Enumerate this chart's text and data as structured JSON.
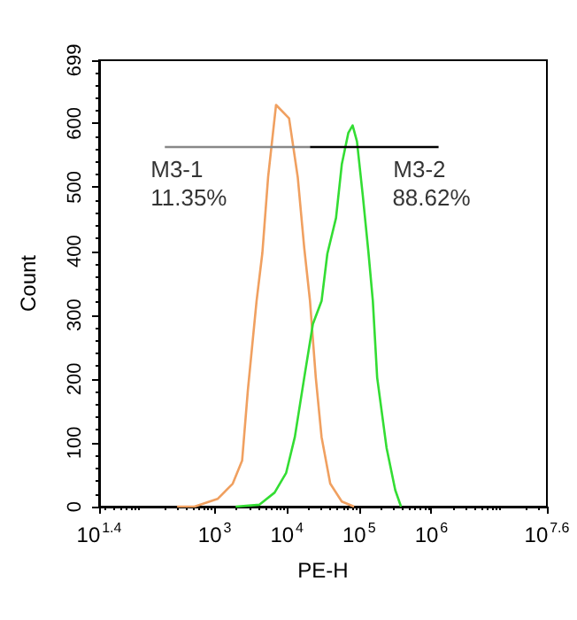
{
  "chart_data": {
    "type": "line",
    "xlabel": "PE-H",
    "ylabel": "Count",
    "log": "x",
    "grid": false,
    "marker": "none",
    "xlim": [
      25.12,
      39810717
    ],
    "xticks": [
      {
        "value": 25.12,
        "label": "10$^{1.4}$"
      },
      {
        "value": 1000,
        "label": "10$^{3}$"
      },
      {
        "value": 10000,
        "label": "10$^{4}$"
      },
      {
        "value": 100000,
        "label": "10$^{5}$"
      },
      {
        "value": 1000000,
        "label": "10$^{6}$"
      },
      {
        "value": 39810717,
        "label": "10$^{7.6}$"
      }
    ],
    "ylim": [
      0,
      699
    ],
    "yticks": [
      0,
      100,
      200,
      300,
      400,
      500,
      600,
      699
    ],
    "series": [
      {
        "color": "#f0a060",
        "x": [
          302,
          525,
          1096,
          1778,
          2399,
          2884,
          3802,
          4571,
          5495,
          7079,
          10720,
          14130,
          17380,
          20890,
          25120,
          30200,
          39810,
          57540,
          85110
        ],
        "values": [
          0,
          0,
          12,
          36,
          72,
          183,
          322,
          397,
          516,
          629,
          608,
          516,
          405,
          322,
          202,
          109,
          36,
          8,
          0
        ]
      },
      {
        "color": "#33dd33",
        "x": [
          1950,
          4169,
          6761,
          9772,
          12880,
          17380,
          22910,
          30200,
          36310,
          47860,
          57540,
          70790,
          81280,
          93330,
          112200,
          134900,
          154900,
          177800,
          239900,
          316200,
          380200
        ],
        "values": [
          0,
          3,
          22,
          53,
          109,
          202,
          286,
          322,
          396,
          452,
          536,
          585,
          597,
          572,
          488,
          397,
          322,
          202,
          92,
          26,
          0
        ]
      },
      {
        "color": "#888888",
        "x": [
          204,
          20890
        ],
        "values": [
          563,
          563
        ]
      },
      {
        "color": "#000000",
        "x": [
          20890,
          1259000
        ],
        "values": [
          563,
          563
        ]
      }
    ],
    "annotations": [
      {
        "text": "M3-1",
        "x": 204,
        "y": 563
      },
      {
        "text": "M3-2",
        "x": 1259000,
        "y": 563
      },
      "11.35%",
      "88.62%"
    ]
  }
}
